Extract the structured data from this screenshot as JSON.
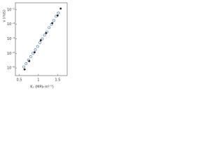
{
  "chart_data": {
    "type": "scatter",
    "x_label": "K₁ (MPa·m¹ᐟ²)",
    "y_label": "v (m/s)",
    "log_y": true,
    "xlim": [
      0.4,
      1.75
    ],
    "ylim": [
      3e-07,
      0.03
    ],
    "xticks": [
      0.5,
      1,
      1.5
    ],
    "yticks": [
      {
        "value": 1e-06,
        "label": "10⁻⁶"
      },
      {
        "value": 1e-05,
        "label": "10⁻⁵"
      },
      {
        "value": 0.0001,
        "label": "10⁻⁴"
      },
      {
        "value": 0.001,
        "label": "10⁻³"
      },
      {
        "value": 0.01,
        "label": "10⁻²"
      }
    ],
    "series": [
      {
        "color": "#3a6fb0",
        "marker": "open",
        "x": [
          0.62,
          0.68,
          0.74,
          0.8,
          0.86,
          0.92,
          0.98,
          1.04,
          1.1,
          1.16,
          1.22,
          1.28,
          1.34,
          1.4,
          1.46,
          1.52
        ],
        "values": [
          1.2e-06,
          2e-06,
          3.5e-06,
          6e-06,
          1e-05,
          1.8e-05,
          3e-05,
          5.5e-05,
          0.0001,
          0.00018,
          0.0003,
          0.0006,
          0.001,
          0.0018,
          0.0035,
          0.006
        ]
      },
      {
        "color": "#222222",
        "marker": "filled",
        "x": [
          0.64,
          0.76,
          0.9,
          1.06,
          1.2,
          1.36,
          1.5,
          1.58
        ],
        "values": [
          8e-07,
          3e-06,
          1.2e-05,
          8e-05,
          0.00025,
          0.0012,
          0.004,
          0.012
        ]
      }
    ]
  }
}
